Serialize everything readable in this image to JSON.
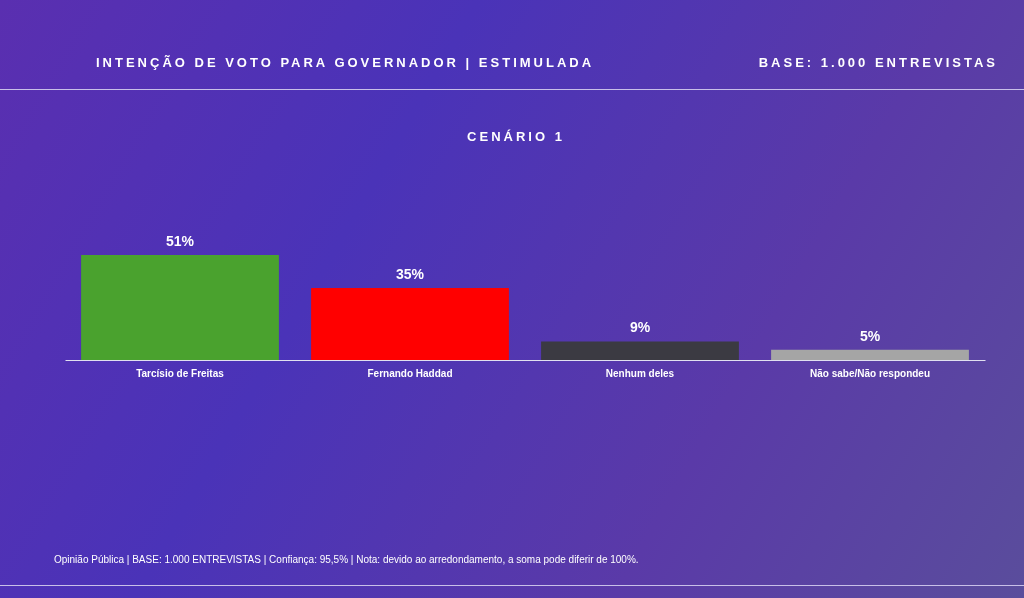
{
  "chart_data": {
    "type": "bar",
    "title": "INTENÇÃO DE VOTO PARA GOVERNADOR | ESTIMULADA",
    "subtitle": "BASE: 1.000 ENTREVISTAS",
    "annotations": [
      "CENÁRIO 1",
      "Opinião Pública | BASE: 1.000 ENTREVISTAS | Confiança: 95,5% | Nota: devido ao arredondamento, a soma pode diferir de 100%."
    ],
    "categories": [
      "Tarcísio de Freitas",
      "Fernando Haddad",
      "Nenhum deles",
      "Não sabe/Não respondeu"
    ],
    "values": [
      51,
      35,
      9,
      5
    ],
    "colors": [
      "#4aa22e",
      "#ff0000",
      "#3b3a42",
      "#a5a5a5"
    ],
    "value_labels": [
      "51%",
      "35%",
      "9%",
      "5%"
    ]
  }
}
